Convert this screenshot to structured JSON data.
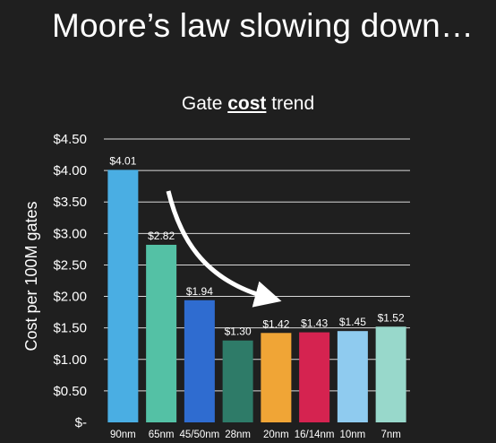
{
  "slide": {
    "title": "Moore’s law slowing down…"
  },
  "chart_data": {
    "type": "bar",
    "title_parts": [
      "Gate ",
      "cost",
      " trend"
    ],
    "ylabel": "Cost per 100M gates",
    "xlabel": "",
    "categories": [
      "90nm",
      "65nm",
      "45/50nm",
      "28nm",
      "20nm",
      "16/14nm",
      "10nm",
      "7nm"
    ],
    "values": [
      4.01,
      2.82,
      1.94,
      1.3,
      1.42,
      1.43,
      1.45,
      1.52
    ],
    "value_labels": [
      "$4.01",
      "$2.82",
      "$1.94",
      "$1.30",
      "$1.42",
      "$1.43",
      "$1.45",
      "$1.52"
    ],
    "colors": [
      "#4aaee3",
      "#54c1a5",
      "#2f6cd0",
      "#2e7b68",
      "#f0a536",
      "#d52350",
      "#8fcbef",
      "#98d8cb"
    ],
    "ylim": [
      0,
      4.5
    ],
    "yticks": [
      0,
      0.5,
      1.0,
      1.5,
      2.0,
      2.5,
      3.0,
      3.5,
      4.0,
      4.5
    ],
    "ytick_labels": [
      "$-",
      "$0.50",
      "$1.00",
      "$1.50",
      "$2.00",
      "$2.50",
      "$3.00",
      "$3.50",
      "$4.00",
      "$4.50"
    ],
    "grid": true,
    "annotation": "curved-arrow"
  }
}
